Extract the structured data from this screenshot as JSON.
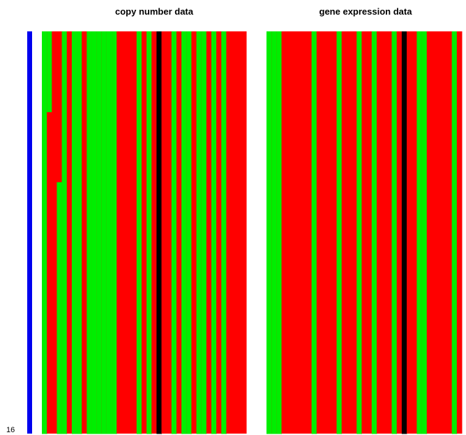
{
  "chart_data": [
    {
      "type": "heatmap",
      "title": "copy number data",
      "row_label": "16",
      "rows": 80,
      "colors": {
        "0": "#ff0000",
        "1": "#00ee00",
        "2": "#000000"
      },
      "side_bar_color": "#0000ee",
      "columns": [
        [
          [
            0,
            80,
            1
          ]
        ],
        [
          [
            0,
            16,
            1
          ],
          [
            16,
            80,
            0
          ]
        ],
        [
          [
            0,
            80,
            0
          ]
        ],
        [
          [
            0,
            30,
            0
          ],
          [
            30,
            80,
            1
          ]
        ],
        [
          [
            0,
            80,
            1
          ]
        ],
        [
          [
            0,
            80,
            0
          ]
        ],
        [
          [
            0,
            80,
            1
          ]
        ],
        [
          [
            0,
            80,
            1
          ]
        ],
        [
          [
            0,
            80,
            0
          ]
        ],
        [
          [
            0,
            80,
            1
          ]
        ],
        [
          [
            0,
            80,
            1
          ]
        ],
        [
          [
            0,
            80,
            1
          ]
        ],
        [
          [
            0,
            80,
            1
          ]
        ],
        [
          [
            0,
            80,
            1
          ]
        ],
        [
          [
            0,
            80,
            1
          ]
        ],
        [
          [
            0,
            80,
            0
          ]
        ],
        [
          [
            0,
            80,
            0
          ]
        ],
        [
          [
            0,
            80,
            0
          ]
        ],
        [
          [
            0,
            80,
            0
          ]
        ],
        [
          [
            0,
            80,
            1
          ]
        ],
        [
          [
            0,
            80,
            0
          ]
        ],
        [
          [
            0,
            80,
            1
          ]
        ],
        [
          [
            0,
            80,
            0
          ]
        ],
        [
          [
            0,
            80,
            2
          ]
        ],
        [
          [
            0,
            80,
            0
          ]
        ],
        [
          [
            0,
            80,
            0
          ]
        ],
        [
          [
            0,
            80,
            1
          ]
        ],
        [
          [
            0,
            80,
            0
          ]
        ],
        [
          [
            0,
            80,
            1
          ]
        ],
        [
          [
            0,
            80,
            1
          ]
        ],
        [
          [
            0,
            80,
            0
          ]
        ],
        [
          [
            0,
            80,
            1
          ]
        ],
        [
          [
            0,
            80,
            1
          ]
        ],
        [
          [
            0,
            80,
            0
          ]
        ],
        [
          [
            0,
            80,
            1
          ]
        ],
        [
          [
            0,
            80,
            0
          ]
        ],
        [
          [
            0,
            80,
            1
          ]
        ],
        [
          [
            0,
            80,
            0
          ]
        ],
        [
          [
            0,
            80,
            0
          ]
        ],
        [
          [
            0,
            80,
            0
          ]
        ],
        [
          [
            0,
            80,
            0
          ]
        ]
      ]
    },
    {
      "type": "heatmap",
      "title": "gene expression data",
      "rows": 80,
      "colors": {
        "0": "#ff0000",
        "1": "#00ee00",
        "2": "#000000"
      },
      "columns": [
        [
          [
            0,
            28,
            1
          ],
          [
            28,
            80,
            1
          ]
        ],
        [
          [
            0,
            80,
            1
          ]
        ],
        [
          [
            0,
            80,
            1
          ]
        ],
        [
          [
            0,
            80,
            0
          ]
        ],
        [
          [
            0,
            80,
            0
          ]
        ],
        [
          [
            0,
            80,
            0
          ]
        ],
        [
          [
            0,
            80,
            0
          ]
        ],
        [
          [
            0,
            80,
            0
          ]
        ],
        [
          [
            0,
            80,
            0
          ]
        ],
        [
          [
            0,
            80,
            1
          ]
        ],
        [
          [
            0,
            80,
            0
          ]
        ],
        [
          [
            0,
            80,
            0
          ]
        ],
        [
          [
            0,
            80,
            0
          ]
        ],
        [
          [
            0,
            80,
            0
          ]
        ],
        [
          [
            0,
            80,
            1
          ]
        ],
        [
          [
            0,
            80,
            0
          ]
        ],
        [
          [
            0,
            80,
            0
          ]
        ],
        [
          [
            0,
            80,
            0
          ]
        ],
        [
          [
            0,
            80,
            1
          ]
        ],
        [
          [
            0,
            80,
            0
          ]
        ],
        [
          [
            0,
            80,
            0
          ]
        ],
        [
          [
            0,
            80,
            1
          ]
        ],
        [
          [
            0,
            80,
            0
          ]
        ],
        [
          [
            0,
            80,
            0
          ]
        ],
        [
          [
            0,
            80,
            0
          ]
        ],
        [
          [
            0,
            80,
            1
          ]
        ],
        [
          [
            0,
            80,
            0
          ]
        ],
        [
          [
            0,
            80,
            2
          ]
        ],
        [
          [
            0,
            80,
            0
          ]
        ],
        [
          [
            0,
            80,
            0
          ]
        ],
        [
          [
            0,
            80,
            1
          ]
        ],
        [
          [
            0,
            80,
            1
          ]
        ],
        [
          [
            0,
            80,
            0
          ]
        ],
        [
          [
            0,
            80,
            0
          ]
        ],
        [
          [
            0,
            80,
            0
          ]
        ],
        [
          [
            0,
            80,
            0
          ]
        ],
        [
          [
            0,
            80,
            0
          ]
        ],
        [
          [
            0,
            80,
            1
          ]
        ],
        [
          [
            0,
            80,
            0
          ]
        ]
      ]
    }
  ]
}
